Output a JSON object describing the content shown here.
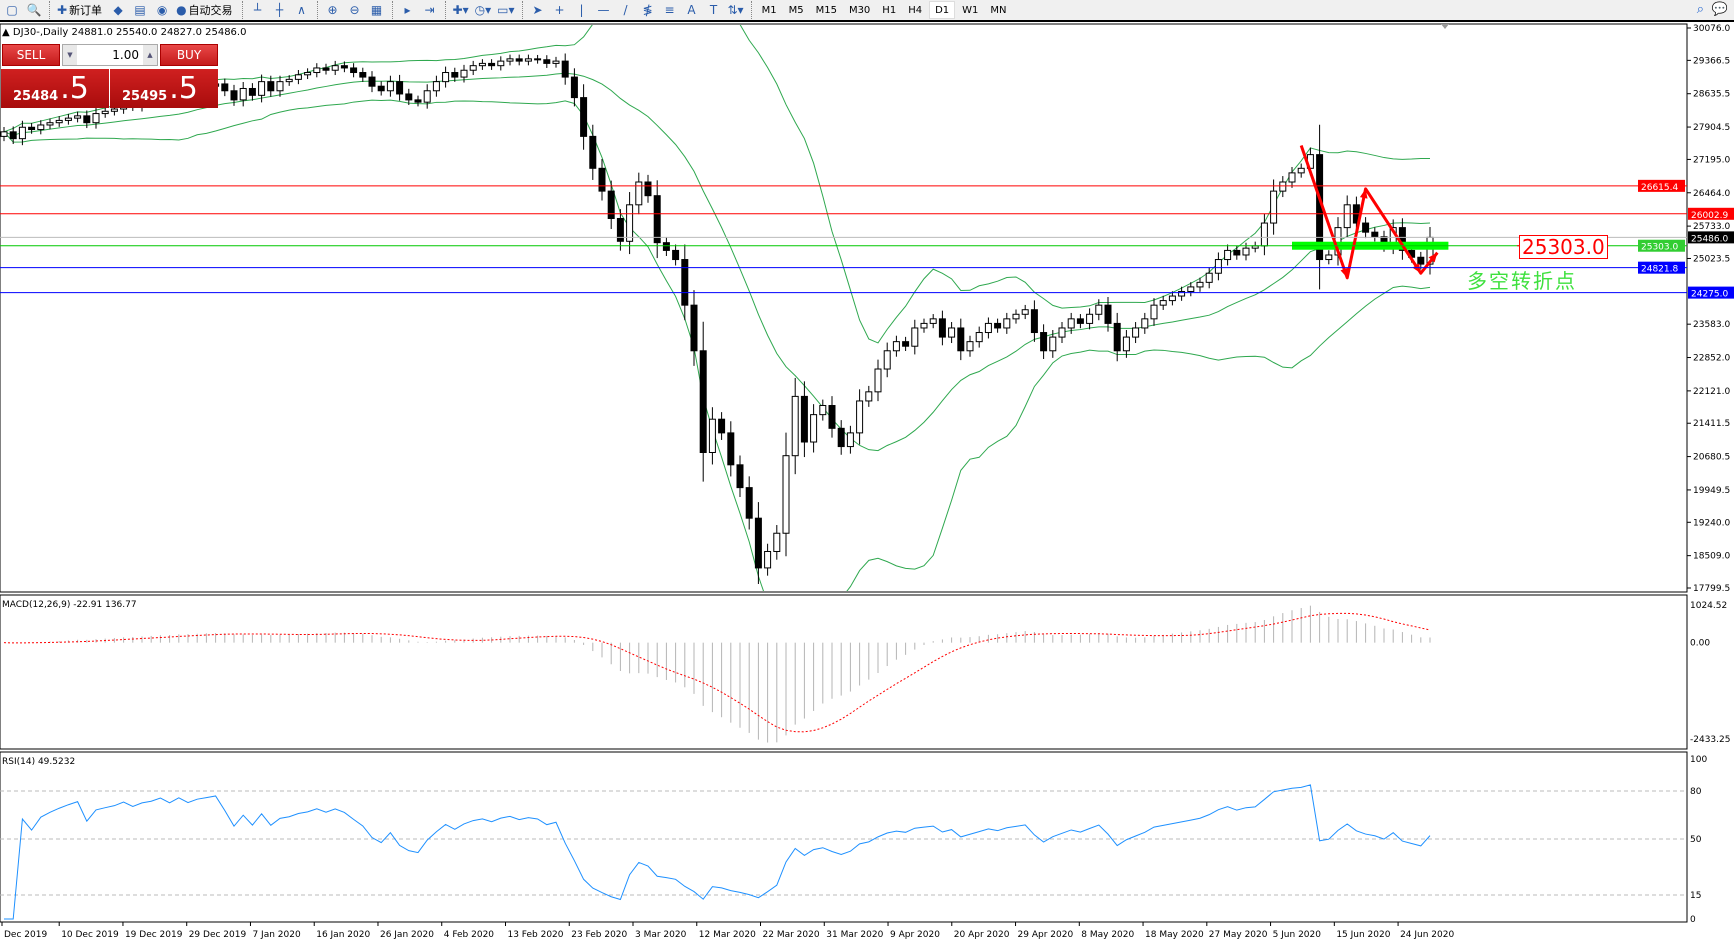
{
  "toolbar": {
    "items": [
      {
        "icon": "new-window-icon",
        "glyph": "▢"
      },
      {
        "icon": "profiles-icon",
        "glyph": "🔍"
      },
      {
        "sep": true
      },
      {
        "icon": "new-order-icon",
        "glyph": "✚",
        "label": "新订单"
      },
      {
        "icon": "metaeditor-icon",
        "glyph": "◆"
      },
      {
        "icon": "navigator-icon",
        "glyph": "▤"
      },
      {
        "icon": "signals-icon",
        "glyph": "◉"
      },
      {
        "icon": "autotrading-icon",
        "glyph": "●",
        "label": "自动交易"
      },
      {
        "sep": true
      },
      {
        "icon": "bar-chart-icon",
        "glyph": "┴"
      },
      {
        "icon": "candlestick-icon",
        "glyph": "┼"
      },
      {
        "icon": "line-chart-icon",
        "glyph": "∧"
      },
      {
        "sep": true
      },
      {
        "icon": "zoom-in-icon",
        "glyph": "⊕"
      },
      {
        "icon": "zoom-out-icon",
        "glyph": "⊖"
      },
      {
        "icon": "tile-windows-icon",
        "glyph": "▦"
      },
      {
        "sep": true
      },
      {
        "icon": "auto-scroll-icon",
        "glyph": "▸"
      },
      {
        "icon": "chart-shift-icon",
        "glyph": "⇥"
      },
      {
        "sep": true
      },
      {
        "icon": "indicators-icon",
        "glyph": "✚▾"
      },
      {
        "icon": "periods-icon",
        "glyph": "◷▾"
      },
      {
        "icon": "templates-icon",
        "glyph": "▭▾"
      },
      {
        "sep": true
      },
      {
        "icon": "cursor-icon",
        "glyph": "➤"
      },
      {
        "icon": "crosshair-icon",
        "glyph": "+"
      },
      {
        "icon": "vertical-line-icon",
        "glyph": "|"
      },
      {
        "icon": "horizontal-line-icon",
        "glyph": "—"
      },
      {
        "icon": "trendline-icon",
        "glyph": "/"
      },
      {
        "icon": "fibonacci-icon",
        "glyph": "≸"
      },
      {
        "icon": "fibo-fan-icon",
        "glyph": "≡"
      },
      {
        "icon": "text-icon",
        "glyph": "A"
      },
      {
        "icon": "text-label-icon",
        "glyph": "T"
      },
      {
        "icon": "arrows-icon",
        "glyph": "⇅▾"
      }
    ],
    "timeframes": [
      "M1",
      "M5",
      "M15",
      "M30",
      "H1",
      "H4",
      "D1",
      "W1",
      "MN"
    ],
    "active_timeframe": "D1"
  },
  "chart": {
    "title": "DJ30-,Daily  24881.0 25540.0 24827.0 25486.0",
    "trade_panel": {
      "sell_label": "SELL",
      "buy_label": "BUY",
      "volume": "1.00",
      "sell_price_main": "25484",
      "sell_price_frac": ".5",
      "buy_price_main": "25495",
      "buy_price_frac": ".5"
    },
    "annotation_price": "25303.0",
    "annotation_text": "多空转折点",
    "colors": {
      "bands": "#2fa84f",
      "up_body": "#ffffff",
      "down_body": "#000000",
      "red_line": "#ff0000",
      "blue_line": "#0000ff",
      "green_line": "#00c800",
      "arrow": "#ff0000",
      "macd_hist": "#b4b4b4",
      "macd_signal": "#ff0000",
      "rsi": "#1e90ff"
    }
  },
  "chart_data": {
    "type": "candlestick",
    "symbol": "DJ30-",
    "timeframe": "Daily",
    "ohlc_last": {
      "open": 24881.0,
      "high": 25540.0,
      "low": 24827.0,
      "close": 25486.0
    },
    "closes": [
      27800,
      27650,
      27900,
      27850,
      27950,
      28000,
      28050,
      28100,
      28150,
      28000,
      28200,
      28250,
      28300,
      28400,
      28350,
      28450,
      28500,
      28600,
      28550,
      28700,
      28650,
      28750,
      28800,
      28850,
      28700,
      28500,
      28750,
      28600,
      28900,
      28700,
      28900,
      28950,
      29050,
      29100,
      29200,
      29150,
      29250,
      29200,
      29100,
      29000,
      28800,
      28700,
      28900,
      28630,
      28500,
      28450,
      28700,
      28900,
      29100,
      29000,
      29150,
      29250,
      29300,
      29250,
      29350,
      29400,
      29350,
      29400,
      29380,
      29300,
      29350,
      29000,
      28550,
      27700,
      27000,
      26500,
      25900,
      25400,
      26200,
      26700,
      26400,
      25370,
      25200,
      25000,
      24000,
      23000,
      20770,
      21500,
      21200,
      20500,
      20000,
      19330,
      18240,
      18600,
      19000,
      20700,
      22000,
      21000,
      21600,
      21800,
      21300,
      20900,
      21200,
      21900,
      22100,
      22600,
      23000,
      23200,
      23100,
      23500,
      23600,
      23700,
      23300,
      23500,
      23000,
      23200,
      23400,
      23600,
      23500,
      23700,
      23800,
      23900,
      23400,
      23000,
      23300,
      23500,
      23700,
      23600,
      23800,
      24000,
      23600,
      23000,
      23300,
      23500,
      23700,
      24000,
      24100,
      24200,
      24300,
      24400,
      24500,
      24700,
      25000,
      25200,
      25100,
      25250,
      25300,
      25800,
      26500,
      26700,
      26900,
      27000,
      27300,
      25000,
      25100,
      25700,
      26200,
      25800,
      25600,
      25500,
      25300,
      25700,
      25200,
      25050,
      24900,
      25486
    ],
    "price_axis_ticks": [
      "30076.0",
      "29366.5",
      "28635.5",
      "27904.5",
      "27195.0",
      "26464.0",
      "25733.0",
      "25023.5",
      "23583.0",
      "22852.0",
      "22121.0",
      "21411.5",
      "20680.5",
      "19949.5",
      "19240.0",
      "18509.0",
      "17799.5"
    ],
    "price_range": [
      17799.5,
      30076.0
    ],
    "levels": [
      {
        "price": "26615.4",
        "color": "red"
      },
      {
        "price": "26002.9",
        "color": "red"
      },
      {
        "price": "25486.0",
        "color": "black"
      },
      {
        "price": "25303.0",
        "color": "green"
      },
      {
        "price": "24821.8",
        "color": "blue"
      },
      {
        "price": "24275.0",
        "color": "blue"
      }
    ],
    "bollinger": {
      "period": 20,
      "deviation": 2
    },
    "date_labels": [
      "Dec 2019",
      "10 Dec 2019",
      "19 Dec 2019",
      "29 Dec 2019",
      "7 Jan 2020",
      "16 Jan 2020",
      "26 Jan 2020",
      "4 Feb 2020",
      "13 Feb 2020",
      "23 Feb 2020",
      "3 Mar 2020",
      "12 Mar 2020",
      "22 Mar 2020",
      "31 Mar 2020",
      "9 Apr 2020",
      "20 Apr 2020",
      "29 Apr 2020",
      "8 May 2020",
      "18 May 2020",
      "27 May 2020",
      "5 Jun 2020",
      "15 Jun 2020",
      "24 Jun 2020"
    ],
    "macd": {
      "label": "MACD(12,26,9) -22.91 136.77",
      "ticks": [
        "1024.52",
        "0.00",
        "-2433.25"
      ],
      "range": [
        -2433.25,
        1024.52
      ]
    },
    "rsi": {
      "label": "RSI(14) 49.5232",
      "ticks": [
        "100",
        "80",
        "50",
        "15",
        "0"
      ],
      "levels": [
        80,
        50,
        15
      ]
    }
  }
}
